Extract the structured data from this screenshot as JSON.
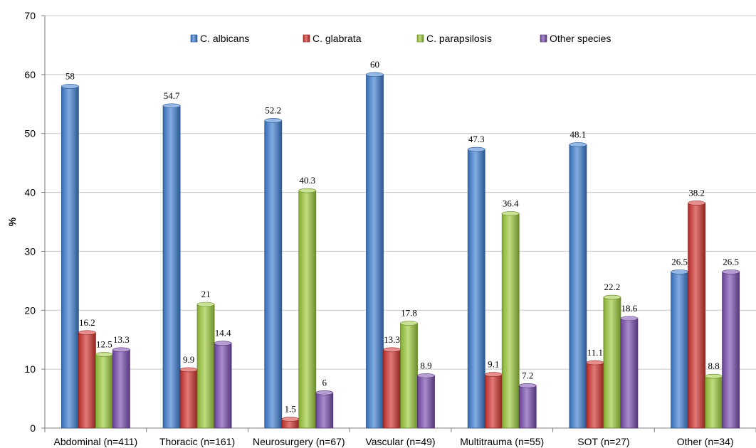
{
  "chart_data": {
    "type": "bar",
    "title": "",
    "xlabel": "",
    "ylabel": "%",
    "ylim": [
      0,
      70
    ],
    "yticks": [
      0,
      10,
      20,
      30,
      40,
      50,
      60,
      70
    ],
    "grid": true,
    "legend_position": "top",
    "categories": [
      "Abdominal (n=411)",
      "Thoracic (n=161)",
      "Neurosurgery (n=67)",
      "Vascular (n=49)",
      "Multitrauma (n=55)",
      "SOT (n=27)",
      "Other (n=34)"
    ],
    "series": [
      {
        "name": "C. albicans",
        "color": "#3f7fd2",
        "values": [
          58,
          54.7,
          52.2,
          60,
          47.3,
          48.1,
          26.5
        ],
        "labels": [
          "58",
          "54.7",
          "52.2",
          "60",
          "47.3",
          "48.1",
          "26.5"
        ]
      },
      {
        "name": "C. glabrata",
        "color": "#d2332e",
        "values": [
          16.2,
          9.9,
          1.5,
          13.3,
          9.1,
          11.1,
          38.2
        ],
        "labels": [
          "16.2",
          "9.9",
          "1.5",
          "13.3",
          "9.1",
          "11.1",
          "38.2"
        ]
      },
      {
        "name": "C. parapsilosis",
        "color": "#9ccb3b",
        "values": [
          12.5,
          21,
          40.3,
          17.8,
          36.4,
          22.2,
          8.8
        ],
        "labels": [
          "12.5",
          "21",
          "40.3",
          "17.8",
          "36.4",
          "22.2",
          "8.8"
        ]
      },
      {
        "name": "Other species",
        "color": "#7a4eb0",
        "values": [
          13.3,
          14.4,
          6,
          8.9,
          7.2,
          18.6,
          26.5
        ],
        "labels": [
          "13.3",
          "14.4",
          "6",
          "8.9",
          "7.2",
          "18.6",
          "26.5"
        ]
      }
    ]
  }
}
